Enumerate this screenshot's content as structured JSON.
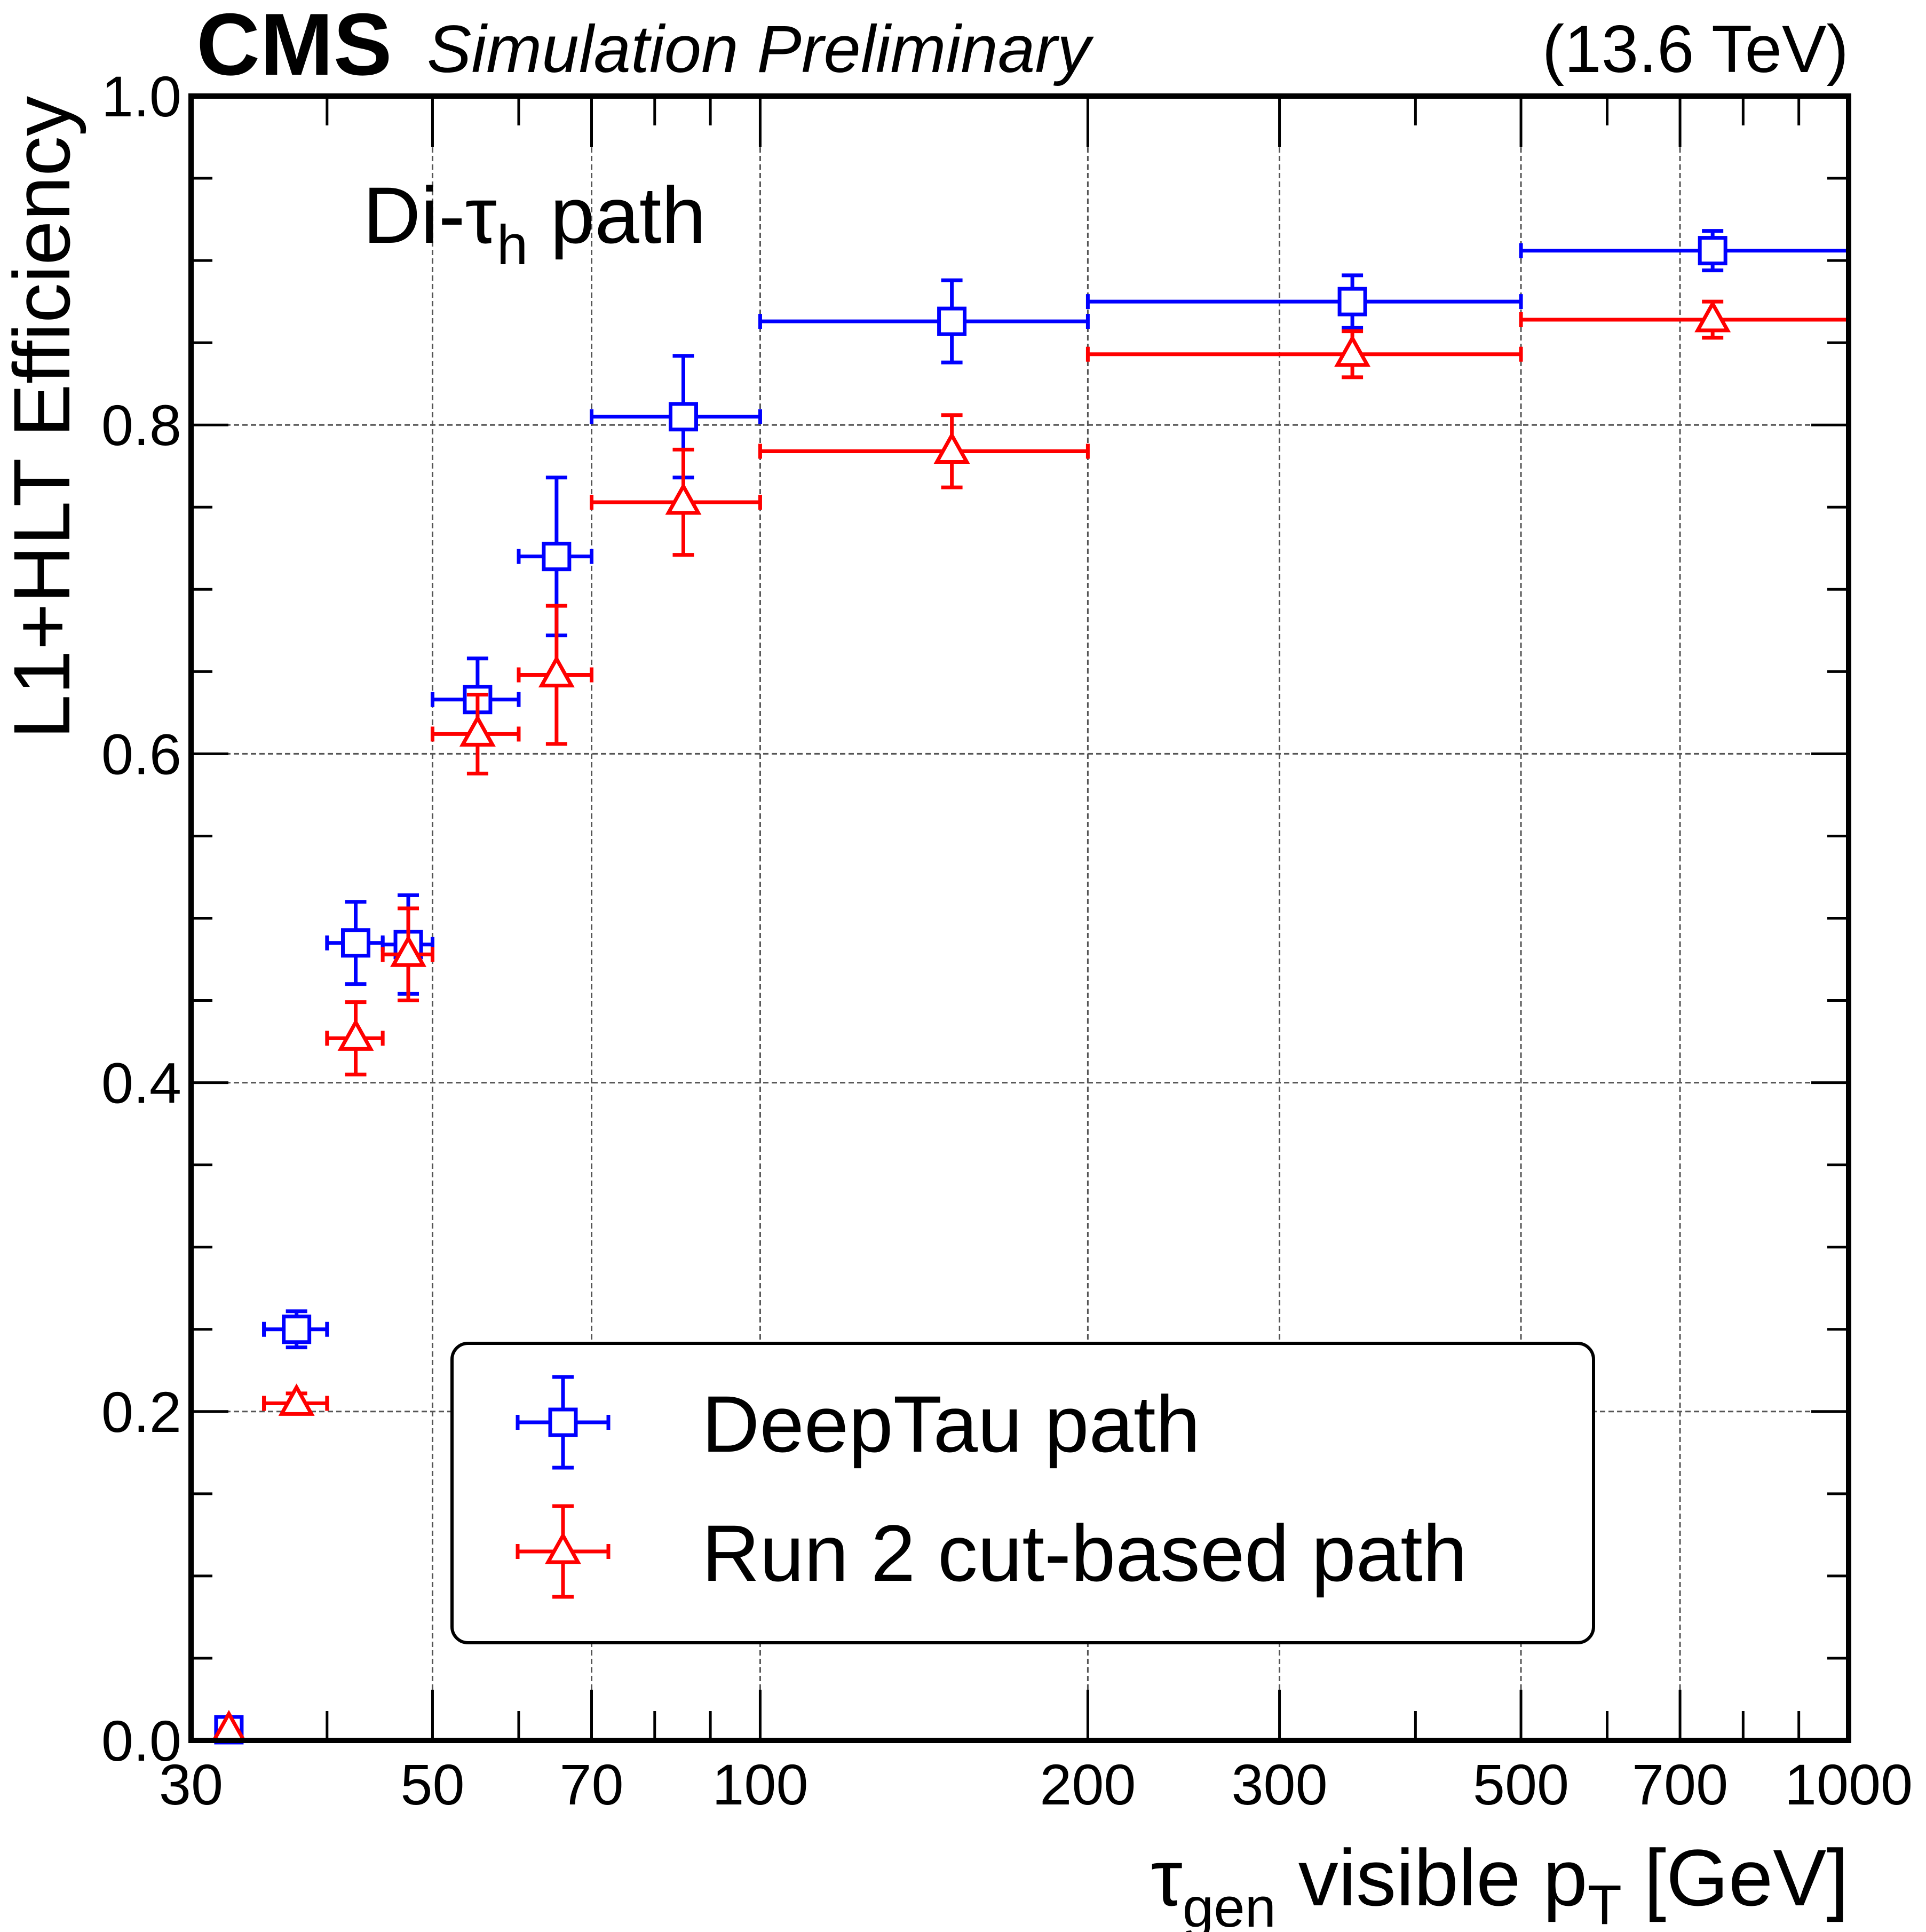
{
  "header": {
    "experiment": "CMS",
    "status": "Simulation Preliminary",
    "energy": "(13.6 TeV)"
  },
  "annotation": {
    "main": "Di-τ",
    "sub": "h",
    "tail": " path"
  },
  "chart_data": {
    "type": "scatter",
    "xscale": "log",
    "xlim": [
      30,
      1000
    ],
    "ylim": [
      0,
      1.0
    ],
    "grid": true,
    "xlabel": {
      "main": "τ",
      "sub": "gen",
      "tail": " visible p",
      "sub2": "T",
      "unit": " [GeV]"
    },
    "ylabel": "L1+HLT Efficiency",
    "xticks": [
      "30",
      "50",
      "70",
      "100",
      "200",
      "300",
      "500",
      "700",
      "1000"
    ],
    "xtick_values": [
      30,
      50,
      70,
      100,
      200,
      300,
      500,
      700,
      1000
    ],
    "yticks": [
      "0.0",
      "0.2",
      "0.4",
      "0.6",
      "0.8",
      "1.0"
    ],
    "ytick_values": [
      0,
      0.2,
      0.4,
      0.6,
      0.8,
      1.0
    ],
    "legend_position": "bottom-center",
    "bins": [
      [
        30,
        35
      ],
      [
        35,
        40
      ],
      [
        40,
        45
      ],
      [
        45,
        50
      ],
      [
        50,
        60
      ],
      [
        60,
        70
      ],
      [
        70,
        100
      ],
      [
        100,
        200
      ],
      [
        200,
        500
      ],
      [
        500,
        1000
      ]
    ],
    "x": [
      32.5,
      37.5,
      42.5,
      47.5,
      55,
      65,
      85,
      150,
      350,
      750
    ],
    "series": [
      {
        "name": "DeepTau path",
        "color": "#0000ff",
        "marker": "open-square",
        "values": [
          0.0,
          0.25,
          0.485,
          0.484,
          0.633,
          0.72,
          0.805,
          0.863,
          0.875,
          0.906
        ],
        "errors": [
          0.0,
          0.011,
          0.025,
          0.03,
          0.025,
          0.048,
          0.037,
          0.025,
          0.016,
          0.012
        ]
      },
      {
        "name": "Run 2 cut-based path",
        "color": "#ff0000",
        "marker": "open-triangle",
        "values": [
          0.0,
          0.205,
          0.427,
          0.478,
          0.612,
          0.648,
          0.753,
          0.784,
          0.843,
          0.864
        ],
        "errors": [
          0.0,
          0.006,
          0.022,
          0.028,
          0.024,
          0.042,
          0.032,
          0.022,
          0.014,
          0.011
        ]
      }
    ]
  }
}
